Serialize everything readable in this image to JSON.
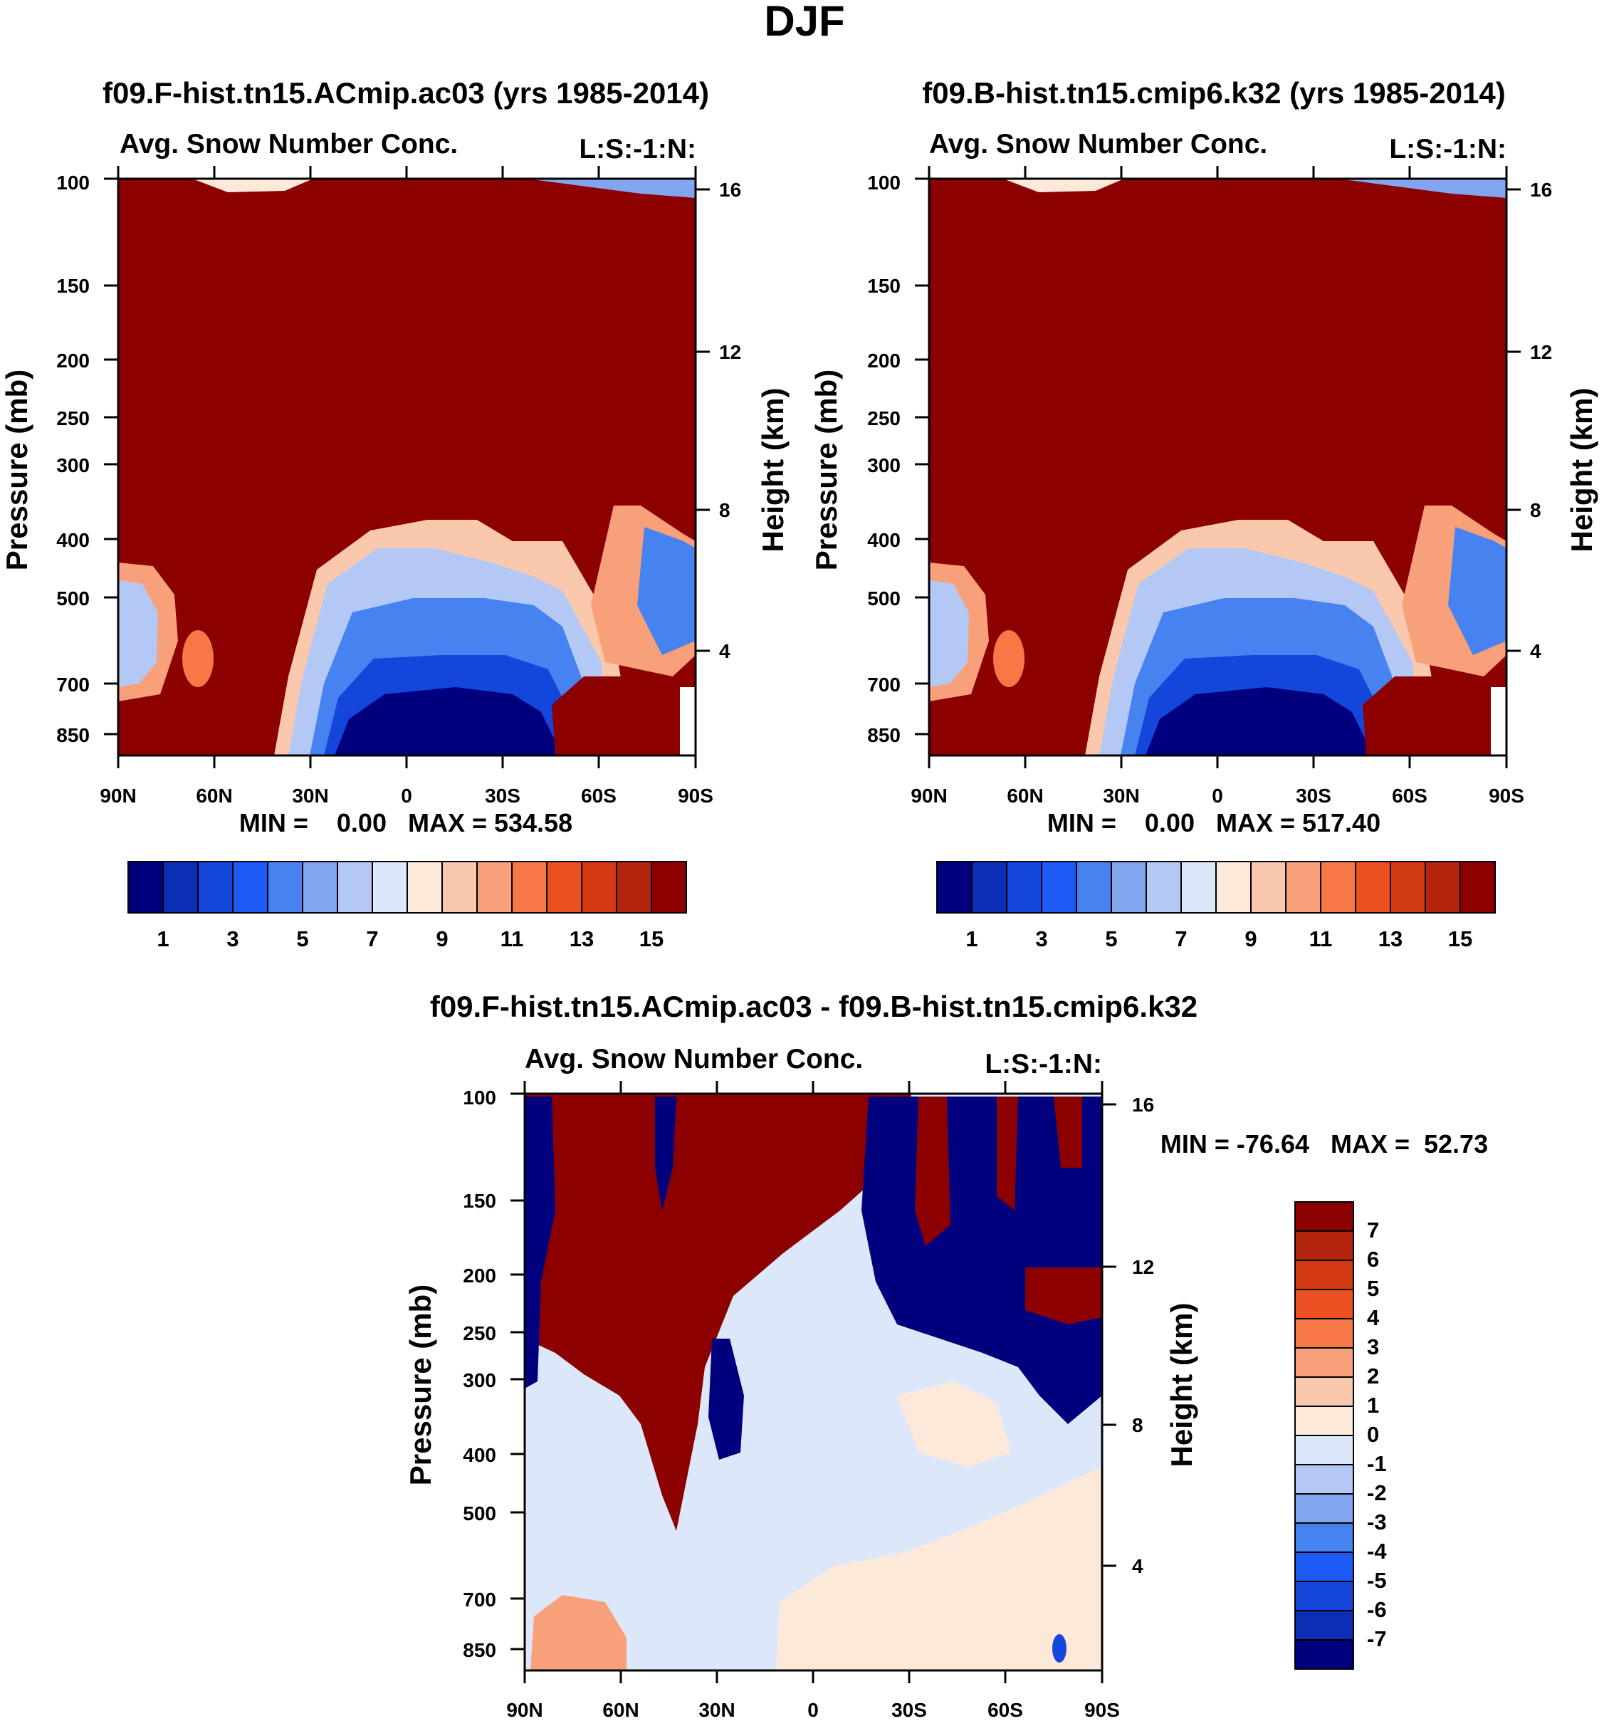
{
  "title": "DJF",
  "chart_data": [
    {
      "type": "heatmap",
      "panel": "left",
      "title": "f09.F-hist.tn15.ACmip.ac03 (yrs 1985-2014)",
      "subtitle": "Avg. Snow Number Conc.",
      "corner_label": "L:S:-1:N:",
      "ylabel": "Pressure (mb)",
      "ylabel_right": "Height (km)",
      "x_ticks": [
        "90N",
        "60N",
        "30N",
        "0",
        "30S",
        "60S",
        "90S"
      ],
      "y_ticks": [
        "100",
        "150",
        "200",
        "250",
        "300",
        "400",
        "500",
        "700",
        "850"
      ],
      "y_ticks_right": [
        "16",
        "12",
        "8",
        "4"
      ],
      "stats": "MIN =    0.00   MAX = 534.58",
      "colorbar_labels": [
        "1",
        "3",
        "5",
        "7",
        "9",
        "11",
        "13",
        "15"
      ],
      "field": "high values (>15) throughout upper troposphere; low values (<1) in tropical lower troposphere below ~600 mb"
    },
    {
      "type": "heatmap",
      "panel": "right",
      "title": "f09.B-hist.tn15.cmip6.k32 (yrs 1985-2014)",
      "subtitle": "Avg. Snow Number Conc.",
      "corner_label": "L:S:-1:N:",
      "ylabel": "Pressure (mb)",
      "ylabel_right": "Height (km)",
      "x_ticks": [
        "90N",
        "60N",
        "30N",
        "0",
        "30S",
        "60S",
        "90S"
      ],
      "y_ticks": [
        "100",
        "150",
        "200",
        "250",
        "300",
        "400",
        "500",
        "700",
        "850"
      ],
      "y_ticks_right": [
        "16",
        "12",
        "8",
        "4"
      ],
      "stats": "MIN =    0.00   MAX = 517.40",
      "colorbar_labels": [
        "1",
        "3",
        "5",
        "7",
        "9",
        "11",
        "13",
        "15"
      ],
      "field": "similar structure to left panel"
    },
    {
      "type": "heatmap",
      "panel": "difference",
      "title": "f09.F-hist.tn15.ACmip.ac03 - f09.B-hist.tn15.cmip6.k32",
      "subtitle": "Avg. Snow Number Conc.",
      "corner_label": "L:S:-1:N:",
      "ylabel": "Pressure (mb)",
      "ylabel_right": "Height (km)",
      "x_ticks": [
        "90N",
        "60N",
        "30N",
        "0",
        "30S",
        "60S",
        "90S"
      ],
      "y_ticks": [
        "100",
        "150",
        "200",
        "250",
        "300",
        "400",
        "500",
        "700",
        "850"
      ],
      "y_ticks_right": [
        "16",
        "12",
        "8",
        "4"
      ],
      "stats": "MIN = -76.64   MAX =  52.73",
      "colorbar_labels": [
        "7",
        "6",
        "5",
        "4",
        "3",
        "2",
        "1",
        "0",
        "-1",
        "-2",
        "-3",
        "-4",
        "-5",
        "-6",
        "-7"
      ],
      "field": "strong positive/negative streaks in the upper troposphere, near-zero in the lower troposphere"
    }
  ],
  "colors": {
    "scale": [
      "#00007f",
      "#0a2eb4",
      "#1446dc",
      "#1e5af5",
      "#4682f0",
      "#82a5f0",
      "#b4c8f5",
      "#dce8fa",
      "#fde9da",
      "#fac8ad",
      "#f7a07a",
      "#f57846",
      "#eb5020",
      "#d23812",
      "#b42510",
      "#8c0000"
    ],
    "ndiff": [
      "#8c0000",
      "#b42510",
      "#d23812",
      "#eb5020",
      "#f57846",
      "#f7a07a",
      "#fac8ad",
      "#fde9da",
      "#dce8fa",
      "#b4c8f5",
      "#82a5f0",
      "#4682f0",
      "#1e5af5",
      "#1446dc",
      "#0a2eb4",
      "#00007f"
    ]
  }
}
